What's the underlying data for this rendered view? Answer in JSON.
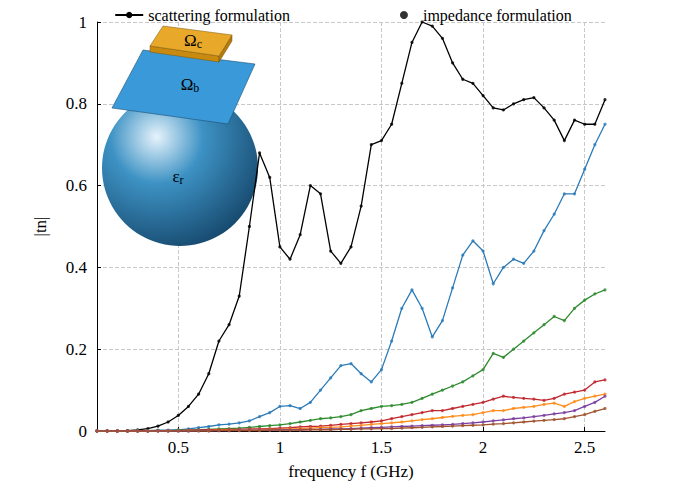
{
  "chart_data": {
    "type": "line",
    "x_label": "frequency f (GHz)",
    "y_label": "|tn|",
    "xlim": [
      0.1,
      2.6
    ],
    "xticks": [
      0.5,
      1,
      1.5,
      2,
      2.5
    ],
    "ylim": [
      0,
      1
    ],
    "yticks": [
      0,
      0.2,
      0.4,
      0.6,
      0.8,
      1
    ],
    "grid": true,
    "legend": "top",
    "legend_entries": [
      {
        "name": "scattering formulation",
        "line_style": "solid"
      },
      {
        "name": "impedance formulation",
        "marker": "dot"
      }
    ],
    "annotations": [
      "Ωc",
      "Ωb",
      "εr"
    ],
    "x": [
      0.1,
      0.15,
      0.2,
      0.25,
      0.3,
      0.35,
      0.4,
      0.45,
      0.5,
      0.55,
      0.6,
      0.65,
      0.7,
      0.75,
      0.8,
      0.85,
      0.9,
      0.95,
      1.0,
      1.05,
      1.1,
      1.15,
      1.2,
      1.25,
      1.3,
      1.35,
      1.4,
      1.45,
      1.5,
      1.55,
      1.6,
      1.65,
      1.7,
      1.75,
      1.8,
      1.85,
      1.9,
      1.95,
      2.0,
      2.05,
      2.1,
      2.15,
      2.2,
      2.25,
      2.3,
      2.35,
      2.4,
      2.45,
      2.5,
      2.55,
      2.6
    ],
    "series": [
      {
        "color": "#000000",
        "values": [
          0,
          0,
          0,
          0.001,
          0.003,
          0.006,
          0.012,
          0.022,
          0.038,
          0.06,
          0.09,
          0.14,
          0.22,
          0.26,
          0.33,
          0.5,
          0.68,
          0.62,
          0.45,
          0.42,
          0.48,
          0.6,
          0.58,
          0.44,
          0.41,
          0.45,
          0.55,
          0.7,
          0.71,
          0.75,
          0.85,
          0.95,
          1.0,
          0.99,
          0.96,
          0.9,
          0.86,
          0.85,
          0.82,
          0.79,
          0.785,
          0.8,
          0.81,
          0.815,
          0.79,
          0.76,
          0.71,
          0.76,
          0.75,
          0.75,
          0.81
        ]
      },
      {
        "color": "#2b7bb9",
        "values": [
          0,
          0,
          0,
          0,
          0.001,
          0.001,
          0.002,
          0.002,
          0.003,
          0.005,
          0.008,
          0.011,
          0.015,
          0.017,
          0.02,
          0.025,
          0.035,
          0.045,
          0.06,
          0.062,
          0.055,
          0.07,
          0.1,
          0.13,
          0.16,
          0.165,
          0.14,
          0.12,
          0.15,
          0.22,
          0.3,
          0.345,
          0.3,
          0.23,
          0.27,
          0.35,
          0.43,
          0.465,
          0.44,
          0.36,
          0.4,
          0.42,
          0.41,
          0.44,
          0.49,
          0.53,
          0.58,
          0.58,
          0.64,
          0.7,
          0.75
        ]
      },
      {
        "color": "#2e8b2e",
        "values": [
          0,
          0,
          0,
          0,
          0,
          0,
          0.001,
          0.001,
          0.002,
          0.002,
          0.003,
          0.004,
          0.005,
          0.006,
          0.007,
          0.009,
          0.011,
          0.013,
          0.015,
          0.018,
          0.022,
          0.026,
          0.03,
          0.032,
          0.035,
          0.04,
          0.05,
          0.055,
          0.06,
          0.062,
          0.065,
          0.07,
          0.08,
          0.09,
          0.1,
          0.11,
          0.12,
          0.135,
          0.15,
          0.19,
          0.18,
          0.2,
          0.22,
          0.24,
          0.26,
          0.28,
          0.27,
          0.3,
          0.32,
          0.335,
          0.345
        ]
      },
      {
        "color": "#c0272d",
        "values": [
          0,
          0,
          0,
          0,
          0,
          0,
          0.001,
          0.001,
          0.001,
          0.002,
          0.002,
          0.003,
          0.003,
          0.004,
          0.004,
          0.005,
          0.005,
          0.006,
          0.007,
          0.008,
          0.01,
          0.011,
          0.012,
          0.014,
          0.016,
          0.018,
          0.02,
          0.022,
          0.025,
          0.03,
          0.035,
          0.04,
          0.045,
          0.05,
          0.05,
          0.055,
          0.06,
          0.065,
          0.07,
          0.078,
          0.085,
          0.082,
          0.08,
          0.078,
          0.075,
          0.08,
          0.09,
          0.095,
          0.1,
          0.12,
          0.125
        ]
      },
      {
        "color": "#ff8c1a",
        "values": [
          0,
          0,
          0,
          0,
          0,
          0,
          0,
          0,
          0.001,
          0.001,
          0.001,
          0.001,
          0.002,
          0.002,
          0.002,
          0.003,
          0.003,
          0.004,
          0.004,
          0.005,
          0.006,
          0.007,
          0.008,
          0.009,
          0.01,
          0.012,
          0.014,
          0.016,
          0.018,
          0.02,
          0.022,
          0.025,
          0.028,
          0.03,
          0.033,
          0.036,
          0.038,
          0.04,
          0.045,
          0.05,
          0.05,
          0.055,
          0.058,
          0.06,
          0.065,
          0.068,
          0.06,
          0.072,
          0.08,
          0.085,
          0.09
        ]
      },
      {
        "color": "#7b3fa0",
        "values": [
          0,
          0,
          0,
          0,
          0,
          0,
          0,
          0,
          0,
          0,
          0.001,
          0.001,
          0.001,
          0.001,
          0.002,
          0.002,
          0.002,
          0.002,
          0.003,
          0.003,
          0.003,
          0.004,
          0.004,
          0.005,
          0.005,
          0.006,
          0.007,
          0.008,
          0.009,
          0.01,
          0.011,
          0.012,
          0.013,
          0.014,
          0.015,
          0.016,
          0.018,
          0.02,
          0.022,
          0.025,
          0.027,
          0.03,
          0.032,
          0.035,
          0.038,
          0.042,
          0.045,
          0.05,
          0.06,
          0.07,
          0.085
        ]
      },
      {
        "color": "#a0522d",
        "values": [
          0,
          0,
          0,
          0,
          0,
          0,
          0,
          0,
          0,
          0,
          0,
          0,
          0.001,
          0.001,
          0.001,
          0.001,
          0.001,
          0.002,
          0.002,
          0.002,
          0.002,
          0.003,
          0.003,
          0.003,
          0.004,
          0.004,
          0.005,
          0.005,
          0.006,
          0.006,
          0.007,
          0.008,
          0.009,
          0.01,
          0.011,
          0.012,
          0.013,
          0.014,
          0.015,
          0.017,
          0.018,
          0.02,
          0.022,
          0.024,
          0.026,
          0.028,
          0.03,
          0.035,
          0.04,
          0.048,
          0.055
        ]
      }
    ]
  }
}
